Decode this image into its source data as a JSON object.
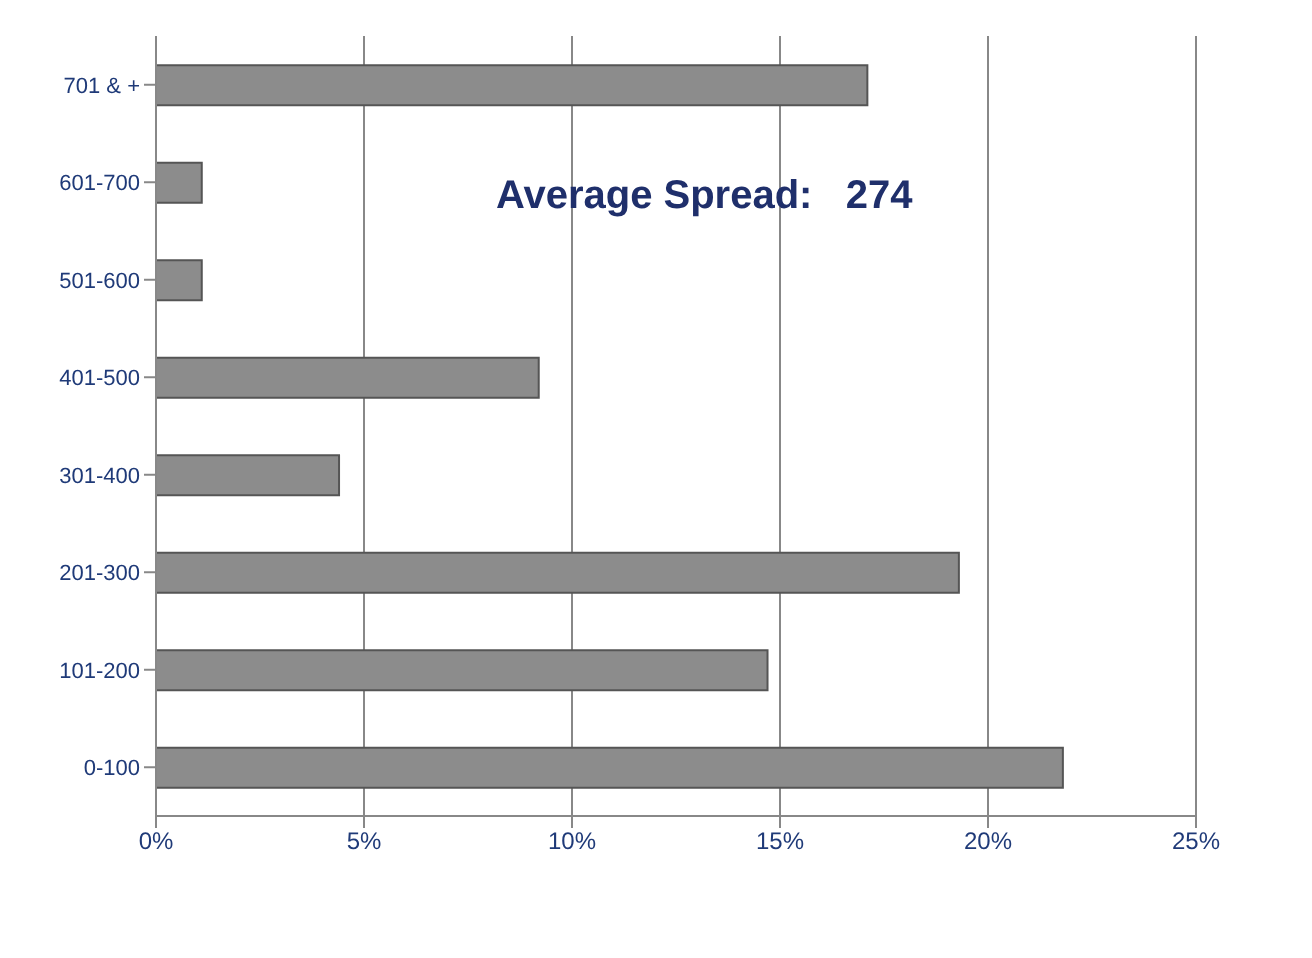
{
  "chart_data": {
    "type": "bar",
    "orientation": "horizontal",
    "categories": [
      "701 & +",
      "601-700",
      "501-600",
      "401-500",
      "301-400",
      "201-300",
      "101-200",
      "0-100"
    ],
    "values": [
      17.1,
      1.1,
      1.1,
      9.2,
      4.4,
      19.3,
      14.7,
      21.8
    ],
    "color": "#8c8c8c",
    "xlim": [
      0,
      25
    ],
    "xticks": [
      {
        "value": 0,
        "label": "0%"
      },
      {
        "value": 5,
        "label": "5%"
      },
      {
        "value": 10,
        "label": "10%"
      },
      {
        "value": 15,
        "label": "15%"
      },
      {
        "value": 20,
        "label": "20%"
      },
      {
        "value": 25,
        "label": "25%"
      }
    ],
    "grid": "x",
    "annotations": [
      "Average Spread:   274"
    ]
  }
}
